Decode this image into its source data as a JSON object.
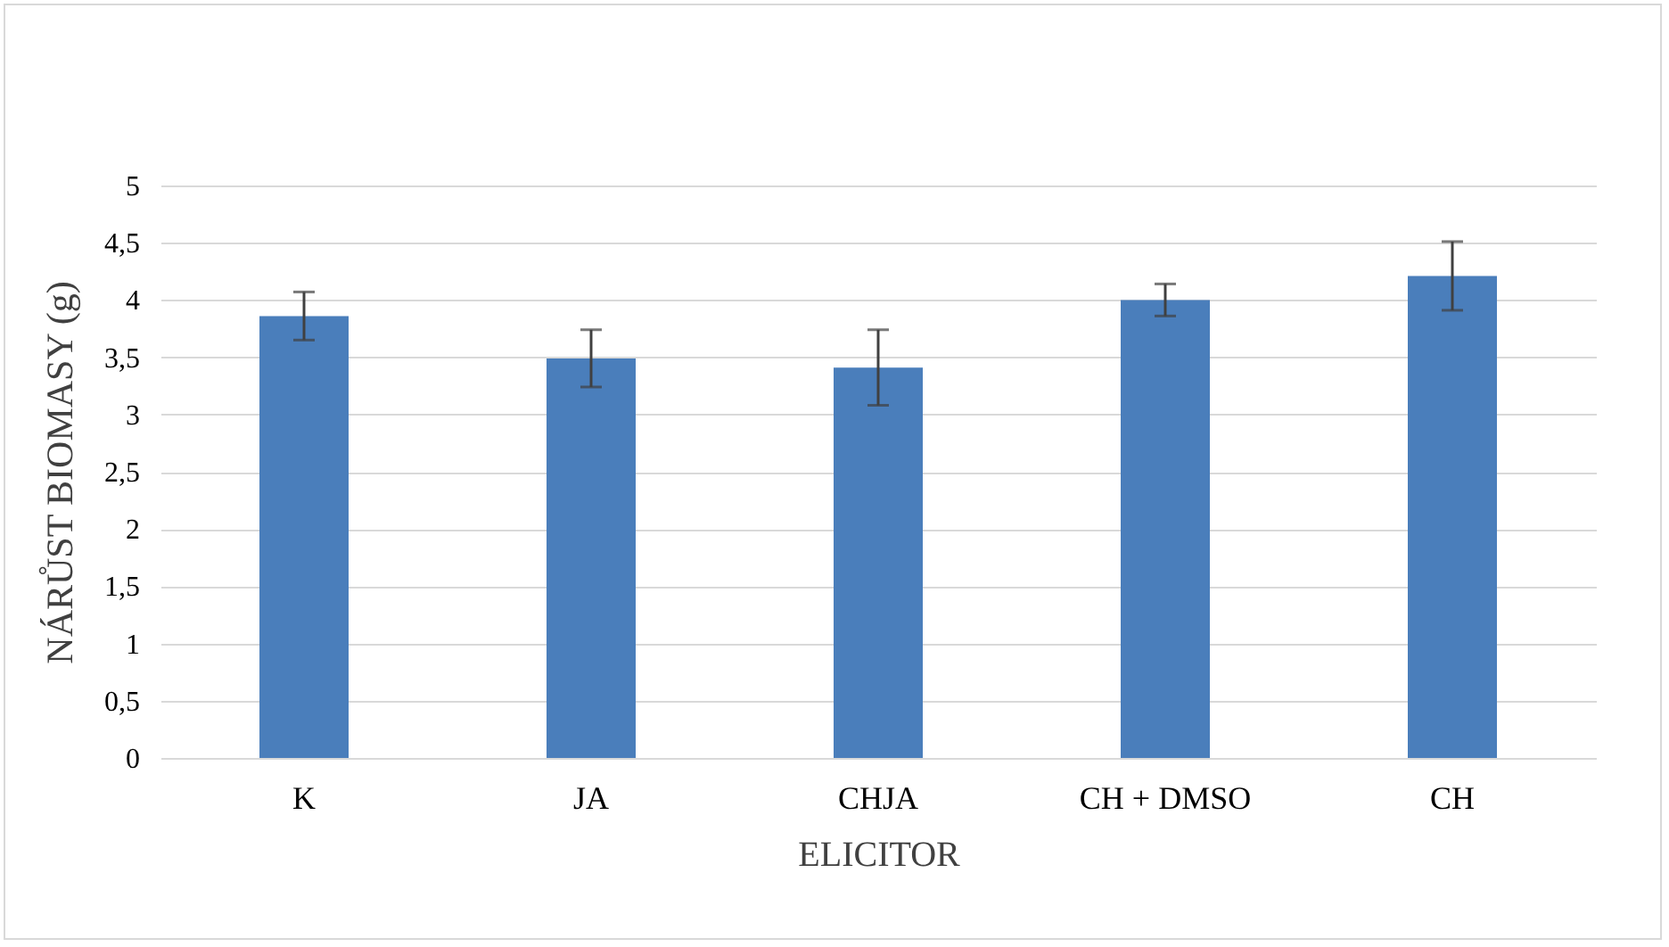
{
  "chart_data": {
    "type": "bar",
    "xlabel": "ELICITOR",
    "ylabel": "NÁRŮST BIOMASY (g)",
    "categories": [
      "K",
      "JA",
      "CHJA",
      "CH + DMSO",
      "CH"
    ],
    "values": [
      3.86,
      3.49,
      3.41,
      4.0,
      4.21
    ],
    "errors": [
      0.21,
      0.25,
      0.33,
      0.14,
      0.3
    ],
    "color": "#4a7ebb",
    "ylim": [
      0,
      5
    ],
    "yticks": [
      0,
      {
        "value": 0.5,
        "label": "0,5"
      },
      1,
      {
        "value": 1.5,
        "label": "1,5"
      },
      2,
      {
        "value": 2.5,
        "label": "2,5"
      },
      3,
      {
        "value": 3.5,
        "label": "3,5"
      },
      4,
      {
        "value": 4.5,
        "label": "4,5"
      },
      5
    ],
    "grid": "y"
  }
}
